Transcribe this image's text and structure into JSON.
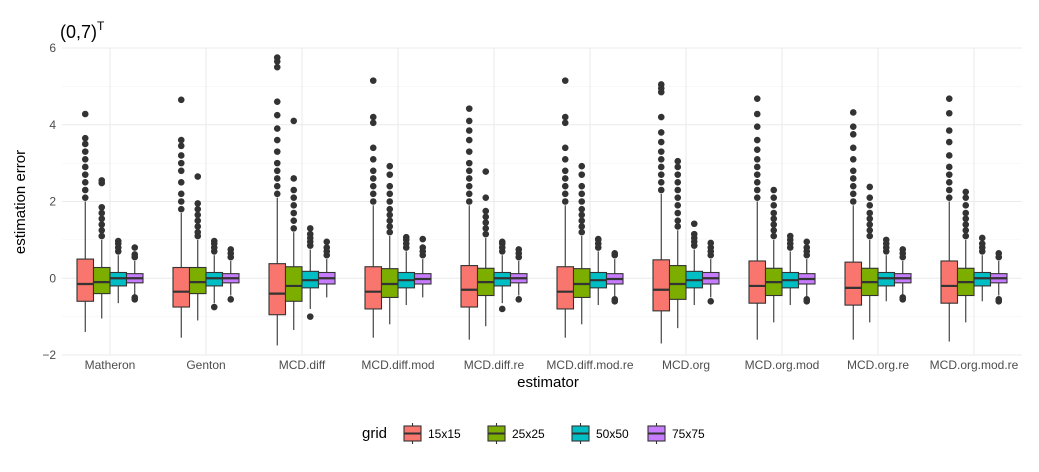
{
  "chart_data": {
    "type": "boxplot",
    "title": "(0,7)",
    "title_superscript": "T",
    "xlabel": "estimator",
    "ylabel": "estimation error",
    "ylim": [
      -2,
      6
    ],
    "yticks": [
      -2,
      0,
      2,
      4,
      6
    ],
    "yticks_labels": [
      "−2",
      "0",
      "2",
      "4",
      "6"
    ],
    "categories": [
      "Matheron",
      "Genton",
      "MCD.diff",
      "MCD.diff.mod",
      "MCD.diff.re",
      "MCD.diff.mod.re",
      "MCD.org",
      "MCD.org.mod",
      "MCD.org.re",
      "MCD.org.mod.re"
    ],
    "legend": {
      "title": "grid",
      "position": "bottom"
    },
    "series": [
      {
        "name": "15x15",
        "color": "#F8766D",
        "boxes": [
          {
            "min": -1.4,
            "q1": -0.6,
            "median": -0.15,
            "q3": 0.5,
            "max": 2.0,
            "outliers": [
              2.1,
              2.3,
              2.5,
              2.7,
              2.9,
              3.1,
              3.3,
              3.5,
              3.65,
              4.28
            ]
          },
          {
            "min": -1.55,
            "q1": -0.75,
            "median": -0.35,
            "q3": 0.28,
            "max": 1.7,
            "outliers": [
              1.8,
              2.0,
              2.2,
              2.5,
              2.8,
              3.0,
              3.2,
              3.45,
              3.6,
              4.65
            ]
          },
          {
            "min": -1.75,
            "q1": -0.95,
            "median": -0.4,
            "q3": 0.38,
            "max": 2.1,
            "outliers": [
              2.2,
              2.4,
              2.6,
              2.8,
              3.0,
              3.3,
              3.6,
              3.9,
              4.25,
              4.6,
              5.5,
              5.65,
              5.75
            ]
          },
          {
            "min": -1.55,
            "q1": -0.8,
            "median": -0.35,
            "q3": 0.3,
            "max": 1.9,
            "outliers": [
              2.0,
              2.2,
              2.4,
              2.6,
              2.8,
              3.1,
              3.4,
              4.05,
              4.2,
              5.15
            ]
          },
          {
            "min": -1.6,
            "q1": -0.75,
            "median": -0.3,
            "q3": 0.33,
            "max": 1.9,
            "outliers": [
              2.0,
              2.2,
              2.4,
              2.6,
              2.8,
              3.0,
              3.3,
              3.6,
              3.85,
              4.1,
              4.42
            ]
          },
          {
            "min": -1.55,
            "q1": -0.8,
            "median": -0.35,
            "q3": 0.3,
            "max": 1.9,
            "outliers": [
              2.0,
              2.2,
              2.4,
              2.6,
              2.8,
              3.1,
              3.4,
              4.05,
              4.2,
              5.15
            ]
          },
          {
            "min": -1.7,
            "q1": -0.85,
            "median": -0.3,
            "q3": 0.48,
            "max": 2.2,
            "outliers": [
              2.3,
              2.5,
              2.7,
              2.9,
              3.1,
              3.3,
              3.55,
              3.8,
              4.2,
              4.85,
              4.95,
              5.05
            ]
          },
          {
            "min": -1.6,
            "q1": -0.65,
            "median": -0.2,
            "q3": 0.45,
            "max": 2.0,
            "outliers": [
              2.1,
              2.3,
              2.5,
              2.7,
              2.9,
              3.1,
              3.35,
              3.6,
              3.95,
              4.28,
              4.68
            ]
          },
          {
            "min": -1.6,
            "q1": -0.7,
            "median": -0.25,
            "q3": 0.42,
            "max": 1.9,
            "outliers": [
              2.0,
              2.2,
              2.4,
              2.6,
              2.8,
              3.1,
              3.4,
              3.75,
              3.95,
              4.32
            ]
          },
          {
            "min": -1.65,
            "q1": -0.65,
            "median": -0.2,
            "q3": 0.45,
            "max": 2.0,
            "outliers": [
              2.1,
              2.3,
              2.5,
              2.7,
              2.9,
              3.2,
              3.55,
              3.85,
              4.3,
              4.68
            ]
          }
        ]
      },
      {
        "name": "25x25",
        "color": "#7CAE00",
        "boxes": [
          {
            "min": -1.05,
            "q1": -0.4,
            "median": -0.1,
            "q3": 0.28,
            "max": 1.0,
            "outliers": [
              1.1,
              1.25,
              1.4,
              1.55,
              1.7,
              1.85,
              2.48,
              2.55
            ]
          },
          {
            "min": -1.1,
            "q1": -0.4,
            "median": -0.1,
            "q3": 0.28,
            "max": 1.0,
            "outliers": [
              1.1,
              1.2,
              1.35,
              1.5,
              1.65,
              1.8,
              1.95,
              2.65
            ]
          },
          {
            "min": -1.35,
            "q1": -0.6,
            "median": -0.2,
            "q3": 0.3,
            "max": 1.2,
            "outliers": [
              1.3,
              1.5,
              1.7,
              1.9,
              2.1,
              2.3,
              2.6,
              4.1
            ]
          },
          {
            "min": -1.2,
            "q1": -0.5,
            "median": -0.15,
            "q3": 0.25,
            "max": 1.1,
            "outliers": [
              1.2,
              1.35,
              1.5,
              1.65,
              1.8,
              2.0,
              2.2,
              2.4,
              2.7,
              2.92
            ]
          },
          {
            "min": -1.25,
            "q1": -0.45,
            "median": -0.1,
            "q3": 0.26,
            "max": 1.05,
            "outliers": [
              1.15,
              1.3,
              1.45,
              1.6,
              1.75,
              2.1,
              2.78
            ]
          },
          {
            "min": -1.2,
            "q1": -0.5,
            "median": -0.15,
            "q3": 0.25,
            "max": 1.1,
            "outliers": [
              1.2,
              1.35,
              1.5,
              1.65,
              1.8,
              2.0,
              2.2,
              2.4,
              2.7,
              2.92
            ]
          },
          {
            "min": -1.3,
            "q1": -0.55,
            "median": -0.15,
            "q3": 0.33,
            "max": 1.25,
            "outliers": [
              1.35,
              1.5,
              1.7,
              1.9,
              2.1,
              2.3,
              2.5,
              2.7,
              2.9,
              3.05
            ]
          },
          {
            "min": -1.15,
            "q1": -0.45,
            "median": -0.1,
            "q3": 0.26,
            "max": 1.0,
            "outliers": [
              1.1,
              1.25,
              1.4,
              1.55,
              1.7,
              1.9,
              2.1,
              2.3
            ]
          },
          {
            "min": -1.15,
            "q1": -0.45,
            "median": -0.1,
            "q3": 0.26,
            "max": 1.0,
            "outliers": [
              1.1,
              1.25,
              1.4,
              1.55,
              1.7,
              1.9,
              2.1,
              2.38
            ]
          },
          {
            "min": -1.15,
            "q1": -0.45,
            "median": -0.1,
            "q3": 0.26,
            "max": 1.0,
            "outliers": [
              1.1,
              1.25,
              1.4,
              1.55,
              1.7,
              1.9,
              2.1,
              2.25
            ]
          }
        ]
      },
      {
        "name": "50x50",
        "color": "#00BFC4",
        "boxes": [
          {
            "min": -0.65,
            "q1": -0.2,
            "median": 0.0,
            "q3": 0.15,
            "max": 0.6,
            "outliers": [
              0.7,
              0.8,
              0.9,
              0.97
            ]
          },
          {
            "min": -0.65,
            "q1": -0.2,
            "median": 0.0,
            "q3": 0.15,
            "max": 0.6,
            "outliers": [
              -0.75,
              0.7,
              0.8,
              0.9,
              0.97
            ]
          },
          {
            "min": -0.8,
            "q1": -0.25,
            "median": -0.05,
            "q3": 0.18,
            "max": 0.75,
            "outliers": [
              -1.0,
              0.85,
              0.95,
              1.05,
              1.15,
              1.3
            ]
          },
          {
            "min": -0.7,
            "q1": -0.25,
            "median": -0.05,
            "q3": 0.15,
            "max": 0.7,
            "outliers": [
              0.8,
              0.9,
              1.0,
              1.07
            ]
          },
          {
            "min": -0.65,
            "q1": -0.2,
            "median": 0.0,
            "q3": 0.15,
            "max": 0.6,
            "outliers": [
              -0.8,
              0.7,
              0.8,
              0.9,
              0.95
            ]
          },
          {
            "min": -0.7,
            "q1": -0.25,
            "median": -0.05,
            "q3": 0.15,
            "max": 0.7,
            "outliers": [
              0.8,
              0.9,
              1.0,
              1.02
            ]
          },
          {
            "min": -0.7,
            "q1": -0.25,
            "median": -0.05,
            "q3": 0.18,
            "max": 0.75,
            "outliers": [
              0.85,
              0.95,
              1.05,
              1.15,
              1.42
            ]
          },
          {
            "min": -0.7,
            "q1": -0.25,
            "median": -0.05,
            "q3": 0.15,
            "max": 0.7,
            "outliers": [
              0.8,
              0.9,
              1.0,
              1.1
            ]
          },
          {
            "min": -0.6,
            "q1": -0.2,
            "median": 0.0,
            "q3": 0.15,
            "max": 0.6,
            "outliers": [
              0.7,
              0.8,
              0.9,
              1.0
            ]
          },
          {
            "min": -0.6,
            "q1": -0.2,
            "median": 0.0,
            "q3": 0.15,
            "max": 0.6,
            "outliers": [
              0.7,
              0.8,
              0.9,
              1.05
            ]
          }
        ]
      },
      {
        "name": "75x75",
        "color": "#C77CFF",
        "boxes": [
          {
            "min": -0.45,
            "q1": -0.12,
            "median": 0.0,
            "q3": 0.12,
            "max": 0.45,
            "outliers": [
              -0.55,
              -0.5,
              0.55,
              0.62,
              0.8
            ]
          },
          {
            "min": -0.45,
            "q1": -0.12,
            "median": 0.0,
            "q3": 0.12,
            "max": 0.45,
            "outliers": [
              -0.55,
              0.55,
              0.65,
              0.75
            ]
          },
          {
            "min": -0.5,
            "q1": -0.15,
            "median": 0.0,
            "q3": 0.15,
            "max": 0.5,
            "outliers": [
              0.6,
              0.7,
              0.8,
              0.95
            ]
          },
          {
            "min": -0.5,
            "q1": -0.15,
            "median": -0.02,
            "q3": 0.12,
            "max": 0.5,
            "outliers": [
              0.6,
              0.7,
              0.8,
              1.02
            ]
          },
          {
            "min": -0.45,
            "q1": -0.12,
            "median": 0.0,
            "q3": 0.12,
            "max": 0.45,
            "outliers": [
              -0.55,
              0.55,
              0.65,
              0.75
            ]
          },
          {
            "min": -0.5,
            "q1": -0.15,
            "median": -0.02,
            "q3": 0.12,
            "max": 0.5,
            "outliers": [
              -0.6,
              -0.55,
              0.6,
              0.65
            ]
          },
          {
            "min": -0.5,
            "q1": -0.15,
            "median": 0.0,
            "q3": 0.15,
            "max": 0.5,
            "outliers": [
              -0.6,
              0.6,
              0.7,
              0.8,
              0.92
            ]
          },
          {
            "min": -0.5,
            "q1": -0.15,
            "median": -0.02,
            "q3": 0.12,
            "max": 0.5,
            "outliers": [
              -0.6,
              -0.55,
              0.6,
              0.7,
              0.8,
              0.95
            ]
          },
          {
            "min": -0.45,
            "q1": -0.12,
            "median": 0.0,
            "q3": 0.12,
            "max": 0.45,
            "outliers": [
              -0.55,
              -0.5,
              0.55,
              0.65,
              0.75
            ]
          },
          {
            "min": -0.45,
            "q1": -0.12,
            "median": 0.0,
            "q3": 0.12,
            "max": 0.45,
            "outliers": [
              -0.6,
              -0.55,
              0.55,
              0.65
            ]
          }
        ]
      }
    ]
  }
}
